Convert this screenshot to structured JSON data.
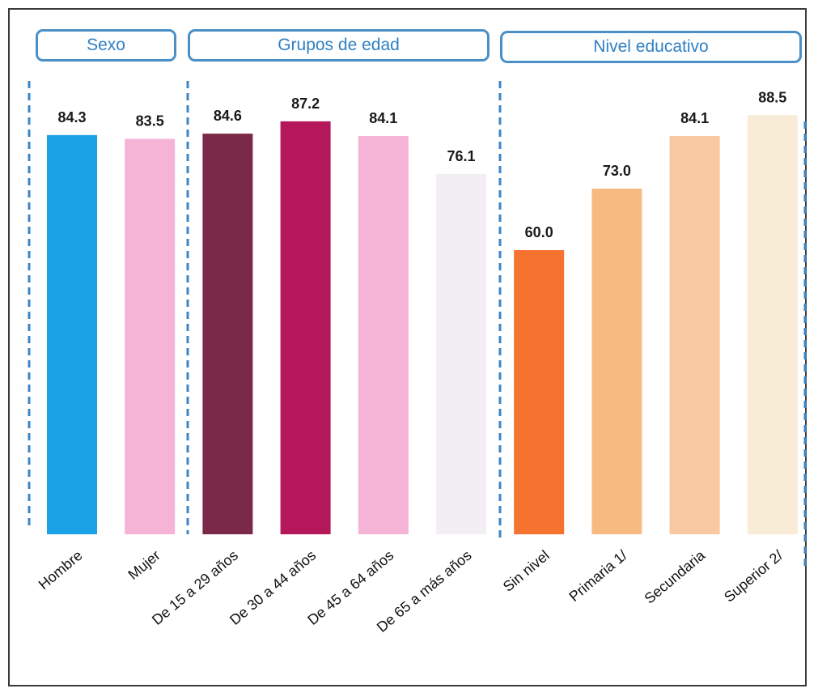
{
  "groups": [
    {
      "label": "Sexo"
    },
    {
      "label": "Grupos de edad"
    },
    {
      "label": "Nivel educativo"
    }
  ],
  "chart_data": {
    "type": "bar",
    "title": "",
    "xlabel": "",
    "ylabel": "",
    "ylim": [
      0,
      100
    ],
    "grid": false,
    "legend": "none",
    "categories": [
      "Hombre",
      "Mujer",
      "De 15 a 29 años",
      "De 30 a 44 años",
      "De 45 a 64 años",
      "De 65 a más años",
      "Sin nivel",
      "Primaria 1/",
      "Secundaria",
      "Superior 2/"
    ],
    "values": [
      84.3,
      83.5,
      84.6,
      87.2,
      84.1,
      76.1,
      60.0,
      73.0,
      84.1,
      88.5
    ],
    "value_labels": [
      "84.3",
      "83.5",
      "84.6",
      "87.2",
      "84.1",
      "76.1",
      "60.0",
      "73.0",
      "84.1",
      "88.5"
    ],
    "bar_colors": [
      "#1aa3e6",
      "#f5b3d6",
      "#7a2a48",
      "#b5175b",
      "#f5b3d6",
      "#f3eef3",
      "#f5732e",
      "#f7bb82",
      "#f7c8a1",
      "#f9ecd6"
    ],
    "category_groups": [
      "Sexo",
      "Sexo",
      "Grupos de edad",
      "Grupos de edad",
      "Grupos de edad",
      "Grupos de edad",
      "Nivel educativo",
      "Nivel educativo",
      "Nivel educativo",
      "Nivel educativo"
    ]
  },
  "colors": {
    "frame_border": "#3a3a3a",
    "group_border": "#4a90c8",
    "group_text": "#2f80c4",
    "divider": "#3d86c6"
  }
}
